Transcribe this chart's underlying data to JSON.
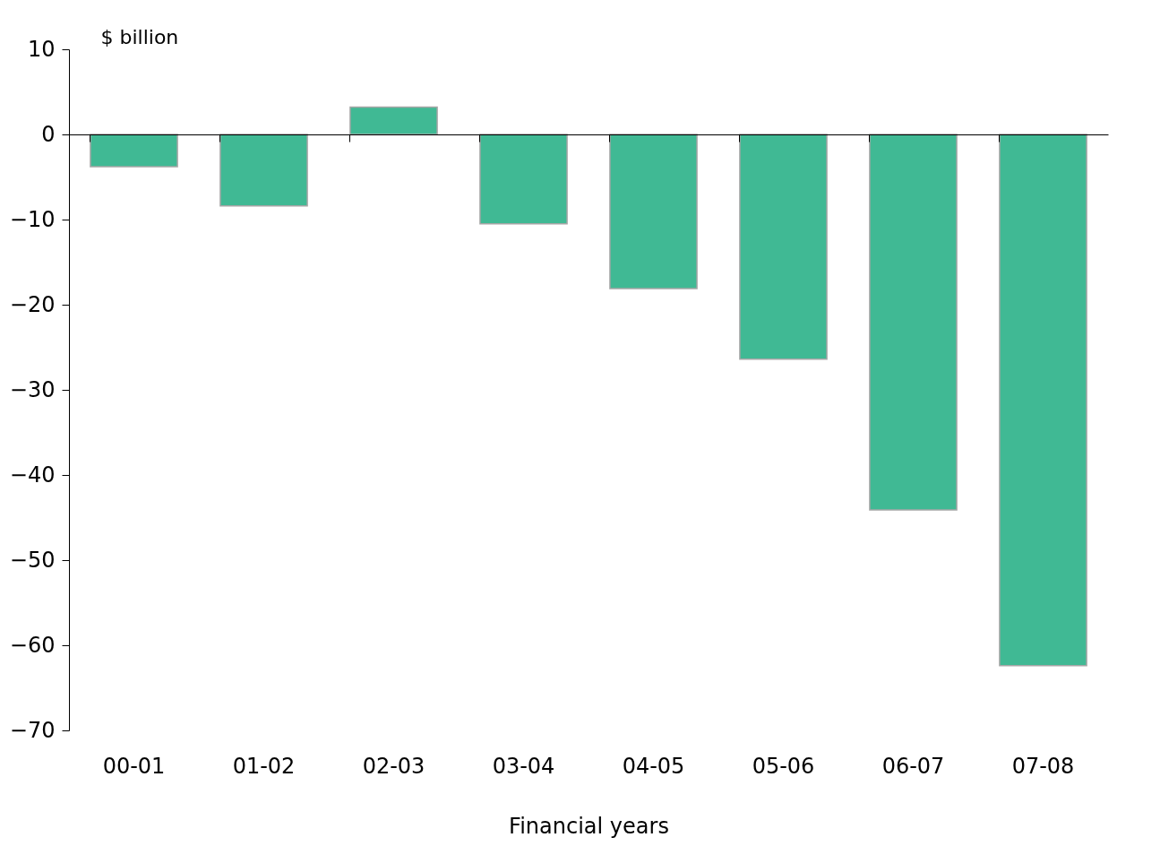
{
  "chart_data": {
    "type": "bar",
    "xlabel": "Financial years",
    "ylabel": "$ billion",
    "categories": [
      "00-01",
      "01-02",
      "02-03",
      "03-04",
      "04-05",
      "05-06",
      "06-07",
      "07-08"
    ],
    "values": [
      -3.8,
      -8.4,
      3.2,
      -10.5,
      -18.1,
      -26.4,
      -44.1,
      -62.4
    ],
    "color": "#40b994",
    "ylim": [
      -70,
      10
    ],
    "yticks": [
      -70,
      -60,
      -50,
      -40,
      -30,
      -20,
      -10,
      0,
      10
    ]
  }
}
